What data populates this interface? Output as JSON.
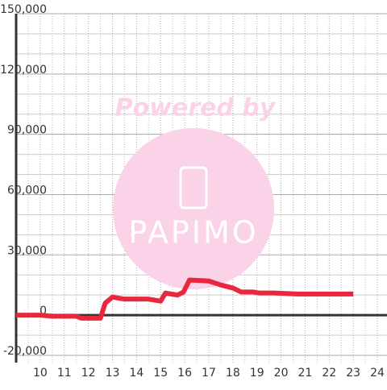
{
  "chart_data": {
    "type": "line",
    "x": [
      9.0,
      10.0,
      10.5,
      11.5,
      11.7,
      12.5,
      12.7,
      13.0,
      13.5,
      14.5,
      15.0,
      15.2,
      15.7,
      15.95,
      16.2,
      17.0,
      17.5,
      18.0,
      18.35,
      18.85,
      19.1,
      19.7,
      20.7,
      23.0
    ],
    "series": [
      {
        "color": "#e8283c",
        "values": [
          0,
          0,
          -500,
          -500,
          -1500,
          -1500,
          6000,
          9000,
          8000,
          8000,
          7000,
          11000,
          10000,
          11500,
          17500,
          17000,
          15000,
          13500,
          11500,
          11500,
          11000,
          11000,
          10500,
          10500
        ]
      }
    ],
    "xlim": [
      9,
      24.4
    ],
    "xticks": [
      10,
      11,
      12,
      13,
      14,
      15,
      16,
      17,
      18,
      19,
      20,
      21,
      22,
      23,
      24
    ],
    "minor_xticks": [
      9.5,
      10.5,
      11.5,
      12.5,
      13.5,
      14.5,
      15.5,
      16.5,
      17.5,
      18.5,
      19.5,
      20.5,
      21.5,
      22.5,
      23.5
    ],
    "ylim": [
      -20000,
      150000
    ],
    "yticks": [
      {
        "value": 150000,
        "label": "150,000"
      },
      {
        "value": 120000,
        "label": "120,000"
      },
      {
        "value": 90000,
        "label": "90,000"
      },
      {
        "value": 60000,
        "label": "60,000"
      },
      {
        "value": 30000,
        "label": "30,000"
      },
      0,
      {
        "value": -20000,
        "label": "-20,000"
      }
    ],
    "minor_yticks": [
      -10000,
      10000,
      20000,
      40000,
      50000,
      70000,
      80000,
      100000,
      110000,
      130000,
      140000
    ],
    "grid": true,
    "watermark": {
      "line1": "Powered by",
      "line2": "PAPIMO"
    }
  }
}
